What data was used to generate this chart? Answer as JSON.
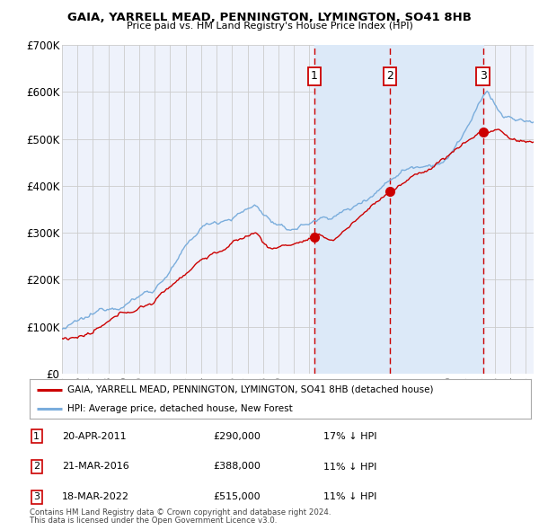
{
  "title": "GAIA, YARRELL MEAD, PENNINGTON, LYMINGTON, SO41 8HB",
  "subtitle": "Price paid vs. HM Land Registry's House Price Index (HPI)",
  "legend_red": "GAIA, YARRELL MEAD, PENNINGTON, LYMINGTON, SO41 8HB (detached house)",
  "legend_blue": "HPI: Average price, detached house, New Forest",
  "transactions": [
    {
      "num": 1,
      "date": "20-APR-2011",
      "price": 290000,
      "hpi_rel": "17% ↓ HPI",
      "year": 2011.3
    },
    {
      "num": 2,
      "date": "21-MAR-2016",
      "price": 388000,
      "hpi_rel": "11% ↓ HPI",
      "year": 2016.22
    },
    {
      "num": 3,
      "date": "18-MAR-2022",
      "price": 515000,
      "hpi_rel": "11% ↓ HPI",
      "year": 2022.22
    }
  ],
  "footnote1": "Contains HM Land Registry data © Crown copyright and database right 2024.",
  "footnote2": "This data is licensed under the Open Government Licence v3.0.",
  "ylim": [
    0,
    700000
  ],
  "yticks": [
    0,
    100000,
    200000,
    300000,
    400000,
    500000,
    600000,
    700000
  ],
  "ytick_labels": [
    "£0",
    "£100K",
    "£200K",
    "£300K",
    "£400K",
    "£500K",
    "£600K",
    "£700K"
  ],
  "bg_color": "#eef2fb",
  "grid_color": "#cccccc",
  "red_color": "#cc0000",
  "blue_color": "#7aaddc",
  "span_color": "#dce9f8",
  "xstart": 1995,
  "xend": 2025.5
}
